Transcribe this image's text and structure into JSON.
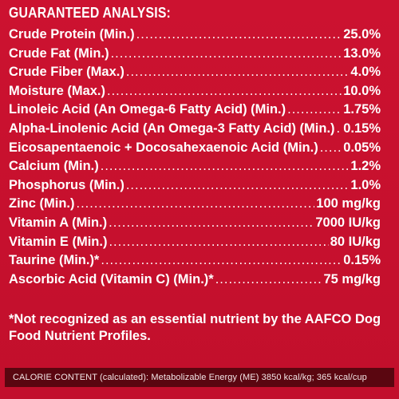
{
  "title": "GUARANTEED ANALYSIS:",
  "rows": [
    {
      "label": "Crude Protein (Min.)",
      "value": "25.0%"
    },
    {
      "label": "Crude Fat (Min.)",
      "value": "13.0%"
    },
    {
      "label": "Crude Fiber (Max.)",
      "value": "4.0%"
    },
    {
      "label": "Moisture (Max.)",
      "value": "10.0%"
    },
    {
      "label": "Linoleic Acid (An Omega-6 Fatty Acid) (Min.)",
      "value": "1.75%"
    },
    {
      "label": "Alpha-Linolenic Acid (An Omega-3 Fatty Acid) (Min.)",
      "value": "0.15%"
    },
    {
      "label": "Eicosapentaenoic + Docosahexaenoic Acid (Min.)",
      "value": "0.05%"
    },
    {
      "label": "Calcium (Min.)",
      "value": "1.2%"
    },
    {
      "label": "Phosphorus (Min.)",
      "value": "1.0%"
    },
    {
      "label": "Zinc (Min.)",
      "value": "100 mg/kg"
    },
    {
      "label": "Vitamin A (Min.)",
      "value": "7000 IU/kg"
    },
    {
      "label": "Vitamin E (Min.)",
      "value": "80 IU/kg"
    },
    {
      "label": "Taurine (Min.)*",
      "value": "0.15%"
    },
    {
      "label": "Ascorbic Acid (Vitamin C) (Min.)*",
      "value": "75 mg/kg"
    }
  ],
  "footnote": "*Not recognized as an essential nutrient by the AAFCO Dog Food Nutrient Profiles.",
  "calorie_content": "CALORIE CONTENT (calculated): Metabolizable Energy (ME) 3850 kcal/kg; 365 kcal/cup",
  "colors": {
    "background": "#c8102e",
    "calorie_bar": "#5a0610",
    "text": "#ffffff"
  }
}
